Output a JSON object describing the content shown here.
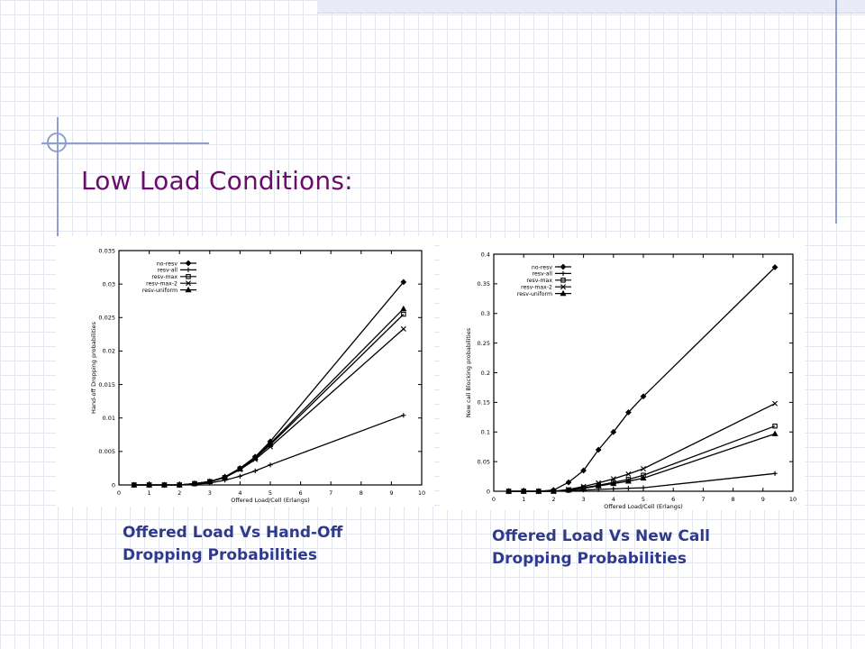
{
  "slide": {
    "title": "Low Load Conditions:",
    "captions": [
      "Offered Load Vs Hand-Off Dropping Probabilities",
      "Offered Load Vs New Call Dropping Probabilities"
    ]
  },
  "colors": {
    "title": "#6a0c6a",
    "caption": "#2f3a8c",
    "accent_lines": "#8ea0d0",
    "plot": "#000000"
  },
  "chart_data": [
    {
      "type": "line",
      "xlabel": "Offered Load/Cell (Erlangs)",
      "ylabel": "Hand-off Dropping probabilities",
      "xlim": [
        0,
        10
      ],
      "ylim": [
        0,
        0.035
      ],
      "x_ticks": [
        0,
        1,
        2,
        3,
        4,
        5,
        6,
        7,
        8,
        9,
        10
      ],
      "y_ticks": [
        0,
        0.005,
        0.01,
        0.015,
        0.02,
        0.025,
        0.03,
        0.035
      ],
      "y_tick_labels": [
        "0",
        "0.005",
        "0.01",
        "0.015",
        "0.02",
        "0.025",
        "0.03",
        "0.035"
      ],
      "legend_position": "top-left",
      "grid": false,
      "series": [
        {
          "name": "no-resv",
          "marker": "diamond",
          "x": [
            0.5,
            1.0,
            1.5,
            2.0,
            2.5,
            3.0,
            3.5,
            4.0,
            4.5,
            5.0,
            9.4
          ],
          "y": [
            0,
            0,
            0,
            0,
            0.0002,
            0.0005,
            0.0012,
            0.0025,
            0.0042,
            0.0065,
            0.0303
          ]
        },
        {
          "name": "resv-all",
          "marker": "plus",
          "x": [
            0.5,
            1.0,
            1.5,
            2.0,
            2.5,
            3.0,
            3.5,
            4.0,
            4.5,
            5.0,
            9.4
          ],
          "y": [
            0,
            0,
            0,
            0,
            0.0001,
            0.0003,
            0.0007,
            0.0013,
            0.0021,
            0.003,
            0.0104
          ]
        },
        {
          "name": "resv-max",
          "marker": "square",
          "x": [
            0.5,
            1.0,
            1.5,
            2.0,
            2.5,
            3.0,
            3.5,
            4.0,
            4.5,
            5.0,
            9.4
          ],
          "y": [
            0,
            0,
            0,
            0,
            0.0002,
            0.0005,
            0.0011,
            0.0024,
            0.004,
            0.006,
            0.0255
          ]
        },
        {
          "name": "resv-max-2",
          "marker": "x",
          "x": [
            0.5,
            1.0,
            1.5,
            2.0,
            2.5,
            3.0,
            3.5,
            4.0,
            4.5,
            5.0,
            9.4
          ],
          "y": [
            0,
            0,
            0,
            0,
            0.0002,
            0.0005,
            0.0011,
            0.0023,
            0.0038,
            0.0057,
            0.0233
          ]
        },
        {
          "name": "resv-uniform",
          "marker": "triangle",
          "x": [
            0.5,
            1.0,
            1.5,
            2.0,
            2.5,
            3.0,
            3.5,
            4.0,
            4.5,
            5.0,
            9.4
          ],
          "y": [
            0,
            0,
            0,
            0,
            0.0002,
            0.0005,
            0.0012,
            0.0024,
            0.0041,
            0.0062,
            0.0263
          ]
        }
      ]
    },
    {
      "type": "line",
      "xlabel": "Offered Load/Cell (Erlangs)",
      "ylabel": "New call Blocking probabilities",
      "xlim": [
        0,
        10
      ],
      "ylim": [
        0,
        0.4
      ],
      "x_ticks": [
        0,
        1,
        2,
        3,
        4,
        5,
        6,
        7,
        8,
        9,
        10
      ],
      "y_ticks": [
        0,
        0.05,
        0.1,
        0.15,
        0.2,
        0.25,
        0.3,
        0.35,
        0.4
      ],
      "y_tick_labels": [
        "0",
        "0.05",
        "0.1",
        "0.15",
        "0.2",
        "0.25",
        "0.3",
        "0.35",
        "0.4"
      ],
      "legend_position": "top-left",
      "grid": false,
      "series": [
        {
          "name": "no-resv",
          "marker": "diamond",
          "x": [
            0.5,
            1.0,
            1.5,
            2.0,
            2.5,
            3.0,
            3.5,
            4.0,
            4.5,
            5.0,
            9.4
          ],
          "y": [
            0,
            0,
            0,
            0.002,
            0.015,
            0.035,
            0.07,
            0.1,
            0.133,
            0.16,
            0.378
          ]
        },
        {
          "name": "resv-all",
          "marker": "plus",
          "x": [
            0.5,
            1.0,
            1.5,
            2.0,
            2.5,
            3.0,
            3.5,
            4.0,
            4.5,
            5.0,
            9.4
          ],
          "y": [
            0,
            0,
            0,
            0,
            0.001,
            0.002,
            0.003,
            0.004,
            0.005,
            0.006,
            0.03
          ]
        },
        {
          "name": "resv-max",
          "marker": "square",
          "x": [
            0.5,
            1.0,
            1.5,
            2.0,
            2.5,
            3.0,
            3.5,
            4.0,
            4.5,
            5.0,
            9.4
          ],
          "y": [
            0,
            0,
            0,
            0,
            0.002,
            0.006,
            0.01,
            0.015,
            0.02,
            0.027,
            0.11
          ]
        },
        {
          "name": "resv-max-2",
          "marker": "x",
          "x": [
            0.5,
            1.0,
            1.5,
            2.0,
            2.5,
            3.0,
            3.5,
            4.0,
            4.5,
            5.0,
            9.4
          ],
          "y": [
            0,
            0,
            0,
            0,
            0.003,
            0.008,
            0.014,
            0.021,
            0.029,
            0.038,
            0.148
          ]
        },
        {
          "name": "resv-uniform",
          "marker": "triangle",
          "x": [
            0.5,
            1.0,
            1.5,
            2.0,
            2.5,
            3.0,
            3.5,
            4.0,
            4.5,
            5.0,
            9.4
          ],
          "y": [
            0,
            0,
            0,
            0,
            0.002,
            0.005,
            0.009,
            0.013,
            0.017,
            0.022,
            0.097
          ]
        }
      ]
    }
  ]
}
